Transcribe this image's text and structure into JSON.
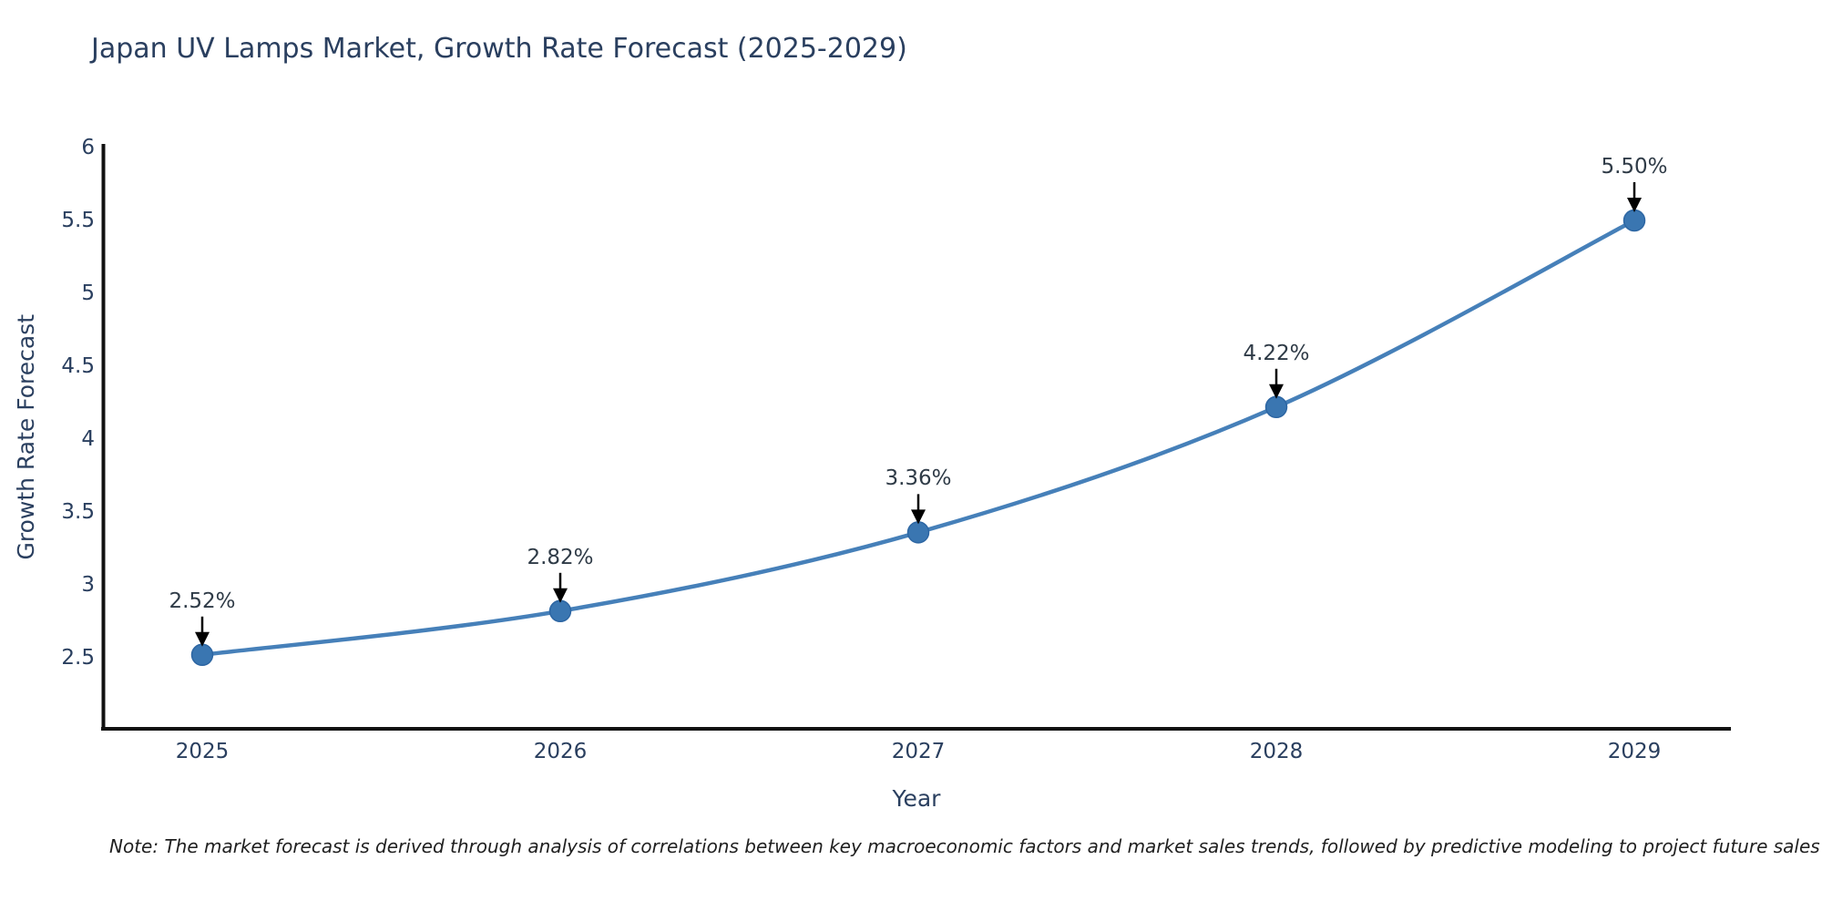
{
  "chart": {
    "title": "Japan UV Lamps Market, Growth Rate Forecast (2025-2029)",
    "xaxis": {
      "title": "Year",
      "tick_labels": [
        "2025",
        "2026",
        "2027",
        "2028",
        "2029"
      ]
    },
    "yaxis": {
      "title": "Growth Rate Forecast",
      "tick_labels": [
        "6",
        "5.5",
        "5",
        "4.5",
        "4",
        "3.5",
        "3",
        "2.5"
      ]
    },
    "note": "Note: The market forecast is derived through analysis of correlations between key macroeconomic factors and market sales trends, followed by predictive modeling to project future sales",
    "colors": {
      "line": "#4680b9",
      "marker_fill": "#3a76b1",
      "marker_edge": "#2d66a3",
      "axis_line": "#111111",
      "arrow": "#000000",
      "title_text": "#2a3f5f",
      "tick_text": "#2a3f5f",
      "annotation_text": "#2f3b47",
      "note_text": "#1f1f1f",
      "background": "#ffffff"
    }
  },
  "chart_data": {
    "type": "line",
    "x": [
      2025,
      2026,
      2027,
      2028,
      2029
    ],
    "series": [
      {
        "name": "Growth Rate Forecast",
        "values": [
          2.52,
          2.82,
          3.36,
          4.22,
          5.5
        ]
      }
    ],
    "point_labels": [
      "2.52%",
      "2.82%",
      "3.36%",
      "4.22%",
      "5.50%"
    ],
    "title": "Japan UV Lamps Market, Growth Rate Forecast (2025-2029)",
    "xlabel": "Year",
    "ylabel": "Growth Rate Forecast",
    "xlim": [
      2025,
      2029
    ],
    "ylim": [
      2.0,
      6.0
    ],
    "yticks": [
      6,
      5.5,
      5,
      4.5,
      4,
      3.5,
      3,
      2.5
    ],
    "grid": false,
    "legend": false,
    "line_shape": "spline",
    "marker_style": "circle",
    "annotations_have_arrows": true
  }
}
